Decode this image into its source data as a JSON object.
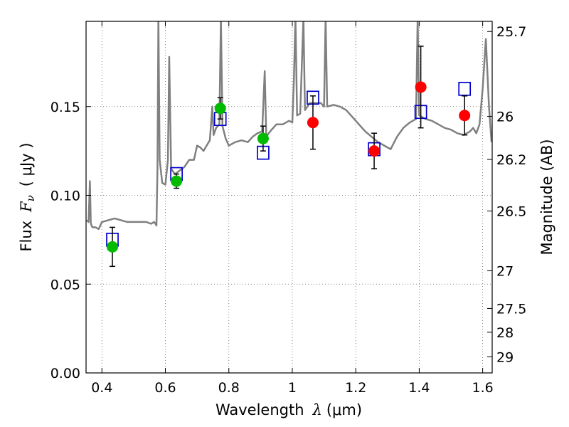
{
  "chart_data": {
    "type": "scatter",
    "xlabel_prefix": "Wavelength",
    "xlabel_symbol": "λ",
    "xlabel_unit": "(μm)",
    "ylabel_prefix": "Flux",
    "ylabel_symbol": "F",
    "ylabel_subscript": "ν",
    "ylabel_unit": "( μJy )",
    "y2label": "Magnitude (AB)",
    "xlim": [
      0.35,
      1.63
    ],
    "ylim": [
      0.0,
      0.198
    ],
    "grid": true,
    "x_ticks": [
      0.4,
      0.6,
      0.8,
      1.0,
      1.2,
      1.4,
      1.6
    ],
    "x_tick_labels": [
      "0.4",
      "0.6",
      "0.8",
      "1",
      "1.2",
      "1.4",
      "1.6"
    ],
    "y_ticks": [
      0.0,
      0.05,
      0.1,
      0.15
    ],
    "y_tick_labels": [
      "0.00",
      "0.05",
      "0.10",
      "0.15"
    ],
    "right_ticks": [
      {
        "label": "25.7",
        "flux": 0.1923
      },
      {
        "label": "26",
        "flux": 0.1445
      },
      {
        "label": "26.2",
        "flux": 0.1202
      },
      {
        "label": "26.5",
        "flux": 0.0912
      },
      {
        "label": "27",
        "flux": 0.0575
      },
      {
        "label": "27.5",
        "flux": 0.0363
      },
      {
        "label": "28",
        "flux": 0.0229
      },
      {
        "label": "29",
        "flux": 0.0091
      }
    ],
    "colors": {
      "spectrum": "#808080",
      "model_flux": "#0000cc",
      "observed_optical": "#00bb00",
      "observed_nir": "#ff0000",
      "errorbar": "#000000",
      "grid": "#666666"
    },
    "series": [
      {
        "kind": "spectrum_line",
        "points": [
          [
            0.352,
            0.086
          ],
          [
            0.358,
            0.085
          ],
          [
            0.362,
            0.108
          ],
          [
            0.365,
            0.084
          ],
          [
            0.37,
            0.082
          ],
          [
            0.38,
            0.082
          ],
          [
            0.39,
            0.081
          ],
          [
            0.4,
            0.085
          ],
          [
            0.42,
            0.086
          ],
          [
            0.44,
            0.087
          ],
          [
            0.46,
            0.086
          ],
          [
            0.48,
            0.085
          ],
          [
            0.5,
            0.085
          ],
          [
            0.52,
            0.085
          ],
          [
            0.54,
            0.085
          ],
          [
            0.555,
            0.084
          ],
          [
            0.565,
            0.085
          ],
          [
            0.572,
            0.083
          ],
          [
            0.575,
            0.115
          ],
          [
            0.578,
            0.2
          ],
          [
            0.582,
            0.12
          ],
          [
            0.59,
            0.107
          ],
          [
            0.6,
            0.106
          ],
          [
            0.608,
            0.12
          ],
          [
            0.612,
            0.178
          ],
          [
            0.618,
            0.115
          ],
          [
            0.63,
            0.112
          ],
          [
            0.645,
            0.114
          ],
          [
            0.66,
            0.116
          ],
          [
            0.675,
            0.12
          ],
          [
            0.69,
            0.12
          ],
          [
            0.7,
            0.128
          ],
          [
            0.71,
            0.127
          ],
          [
            0.72,
            0.125
          ],
          [
            0.73,
            0.128
          ],
          [
            0.74,
            0.131
          ],
          [
            0.748,
            0.15
          ],
          [
            0.752,
            0.134
          ],
          [
            0.76,
            0.138
          ],
          [
            0.77,
            0.14
          ],
          [
            0.775,
            0.2
          ],
          [
            0.78,
            0.139
          ],
          [
            0.79,
            0.132
          ],
          [
            0.8,
            0.128
          ],
          [
            0.82,
            0.13
          ],
          [
            0.84,
            0.131
          ],
          [
            0.86,
            0.13
          ],
          [
            0.875,
            0.133
          ],
          [
            0.89,
            0.135
          ],
          [
            0.905,
            0.136
          ],
          [
            0.913,
            0.17
          ],
          [
            0.918,
            0.133
          ],
          [
            0.93,
            0.136
          ],
          [
            0.95,
            0.14
          ],
          [
            0.97,
            0.14
          ],
          [
            0.99,
            0.142
          ],
          [
            1.0,
            0.141
          ],
          [
            1.005,
            0.165
          ],
          [
            1.01,
            0.2
          ],
          [
            1.015,
            0.145
          ],
          [
            1.025,
            0.146
          ],
          [
            1.035,
            0.2
          ],
          [
            1.04,
            0.148
          ],
          [
            1.055,
            0.152
          ],
          [
            1.07,
            0.152
          ],
          [
            1.09,
            0.152
          ],
          [
            1.1,
            0.15
          ],
          [
            1.105,
            0.2
          ],
          [
            1.11,
            0.15
          ],
          [
            1.13,
            0.151
          ],
          [
            1.15,
            0.15
          ],
          [
            1.17,
            0.148
          ],
          [
            1.19,
            0.144
          ],
          [
            1.21,
            0.14
          ],
          [
            1.23,
            0.136
          ],
          [
            1.25,
            0.133
          ],
          [
            1.27,
            0.13
          ],
          [
            1.29,
            0.128
          ],
          [
            1.31,
            0.126
          ],
          [
            1.33,
            0.133
          ],
          [
            1.35,
            0.138
          ],
          [
            1.37,
            0.141
          ],
          [
            1.39,
            0.143
          ],
          [
            1.395,
            0.2
          ],
          [
            1.4,
            0.145
          ],
          [
            1.42,
            0.143
          ],
          [
            1.44,
            0.142
          ],
          [
            1.46,
            0.14
          ],
          [
            1.48,
            0.138
          ],
          [
            1.5,
            0.137
          ],
          [
            1.52,
            0.135
          ],
          [
            1.54,
            0.134
          ],
          [
            1.56,
            0.136
          ],
          [
            1.57,
            0.138
          ],
          [
            1.58,
            0.135
          ],
          [
            1.59,
            0.14
          ],
          [
            1.6,
            0.16
          ],
          [
            1.61,
            0.188
          ],
          [
            1.62,
            0.15
          ],
          [
            1.628,
            0.13
          ]
        ]
      },
      {
        "kind": "model_boxes",
        "x": [
          0.433,
          0.635,
          0.773,
          0.908,
          1.065,
          1.258,
          1.405,
          1.543
        ],
        "y": [
          0.075,
          0.112,
          0.143,
          0.124,
          0.155,
          0.126,
          0.147,
          0.16
        ]
      },
      {
        "kind": "observed_optical",
        "x": [
          0.433,
          0.635,
          0.773,
          0.908
        ],
        "y": [
          0.071,
          0.108,
          0.149,
          0.132
        ],
        "err_low": [
          0.011,
          0.004,
          0.006,
          0.007
        ],
        "err_high": [
          0.011,
          0.004,
          0.006,
          0.007
        ]
      },
      {
        "kind": "observed_nir",
        "x": [
          1.065,
          1.258,
          1.405,
          1.543
        ],
        "y": [
          0.141,
          0.125,
          0.161,
          0.145
        ],
        "err_low": [
          0.015,
          0.01,
          0.023,
          0.011
        ],
        "err_high": [
          0.015,
          0.01,
          0.023,
          0.011
        ]
      }
    ]
  }
}
